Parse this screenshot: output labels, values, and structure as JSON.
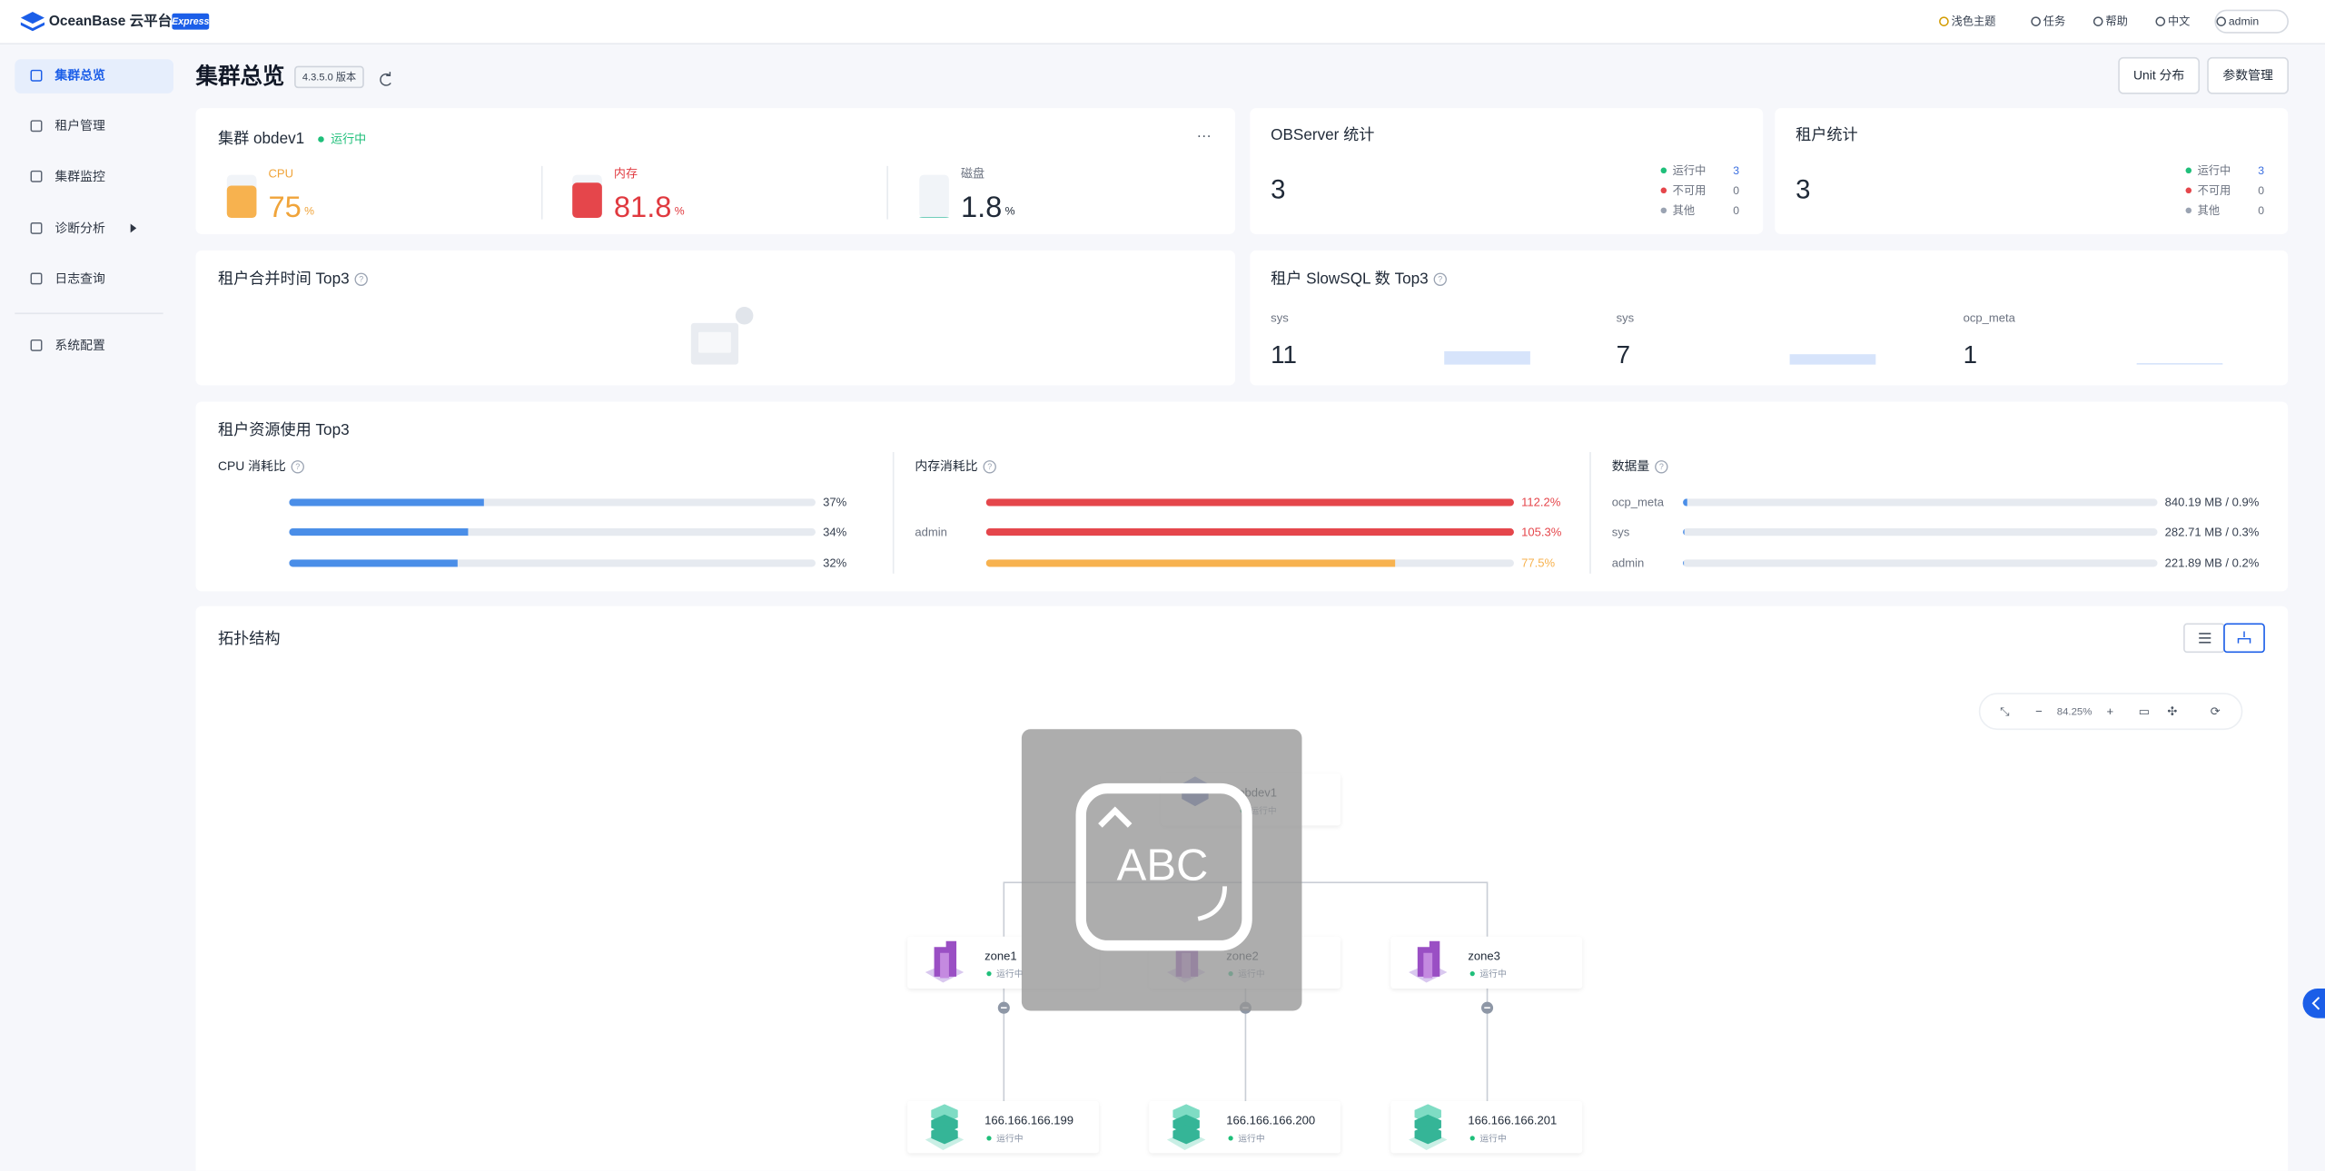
{
  "header": {
    "brand": "OceanBase 云平台",
    "badge": "Express",
    "nav": [
      "浅色主题",
      "任务",
      "帮助",
      "中文",
      "admin"
    ]
  },
  "sidebar": {
    "items": [
      "集群总览",
      "租户管理",
      "集群监控",
      "诊断分析",
      "日志查询",
      "系统配置"
    ],
    "active": 0
  },
  "page": {
    "title": "集群总览",
    "version": "4.3.5.0 版本",
    "buttons": [
      "Unit 分布",
      "参数管理"
    ]
  },
  "cluster": {
    "title": "集群 obdev1",
    "status": "运行中",
    "metrics": [
      {
        "label": "CPU",
        "value": 75,
        "unit": "%",
        "color": "#f7b24f",
        "text_color": "#f0a43a"
      },
      {
        "label": "内存",
        "value": 81.8,
        "unit": "%",
        "color": "#e5464b",
        "text_color": "#e0393f"
      },
      {
        "label": "磁盘",
        "value": 1.8,
        "unit": "%",
        "color": "#5ec7b2",
        "text_color": "#1f2937"
      }
    ]
  },
  "stats": [
    {
      "title": "OBServer 统计",
      "total": 3,
      "items": [
        {
          "label": "运行中",
          "value": 3,
          "color": "#1fbf7a"
        },
        {
          "label": "不可用",
          "value": 0,
          "color": "#e5464b"
        },
        {
          "label": "其他",
          "value": 0,
          "color": "#9aa3b2"
        }
      ]
    },
    {
      "title": "租户统计",
      "total": 3,
      "items": [
        {
          "label": "运行中",
          "value": 3,
          "color": "#1fbf7a"
        },
        {
          "label": "不可用",
          "value": 0,
          "color": "#e5464b"
        },
        {
          "label": "其他",
          "value": 0,
          "color": "#9aa3b2"
        }
      ]
    }
  ],
  "merge": {
    "title": "租户合并时间 Top3"
  },
  "slowsql": {
    "title": "租户 SlowSQL 数 Top3",
    "items": [
      {
        "name": "sys",
        "value": 11
      },
      {
        "name": "sys",
        "value": 7
      },
      {
        "name": "ocp_meta",
        "value": 1
      }
    ]
  },
  "resource": {
    "title": "租户资源使用 Top3",
    "groups": [
      {
        "title": "CPU 消耗比",
        "colored_labels": false,
        "rows": [
          {
            "name": null,
            "value": 37,
            "label": "37%",
            "color": "#4a8ee8"
          },
          {
            "name": null,
            "value": 34,
            "label": "34%",
            "color": "#4a8ee8"
          },
          {
            "name": null,
            "value": 32,
            "label": "32%",
            "color": "#4a8ee8"
          }
        ]
      },
      {
        "title": "内存消耗比",
        "colored_labels": true,
        "rows": [
          {
            "name": null,
            "value": 112.2,
            "label": "112.2%",
            "color": "#e5464b"
          },
          {
            "name": "admin",
            "value": 105.3,
            "label": "105.3%",
            "color": "#e5464b"
          },
          {
            "name": null,
            "value": 77.5,
            "label": "77.5%",
            "color": "#f7b24f"
          }
        ]
      },
      {
        "title": "数据量",
        "colored_labels": false,
        "rows": [
          {
            "name": "ocp_meta",
            "value": 0.9,
            "label": "840.19 MB / 0.9%",
            "color": "#4a8ee8"
          },
          {
            "name": "sys",
            "value": 0.3,
            "label": "282.71 MB / 0.3%",
            "color": "#4a8ee8"
          },
          {
            "name": "admin",
            "value": 0.2,
            "label": "221.89 MB / 0.2%",
            "color": "#4a8ee8"
          }
        ]
      }
    ]
  },
  "topology": {
    "title": "拓扑结构",
    "zoom": "84.25%",
    "cluster": {
      "name": "obdev1",
      "status": "运行中"
    },
    "zones": [
      {
        "name": "zone1",
        "status": "运行中"
      },
      {
        "name": "zone2",
        "status": "运行中"
      },
      {
        "name": "zone3",
        "status": "运行中"
      }
    ],
    "servers": [
      {
        "name": "166.166.166.199",
        "status": "运行中"
      },
      {
        "name": "166.166.166.200",
        "status": "运行中"
      },
      {
        "name": "166.166.166.201",
        "status": "运行中"
      }
    ],
    "overlay": "ABC"
  }
}
